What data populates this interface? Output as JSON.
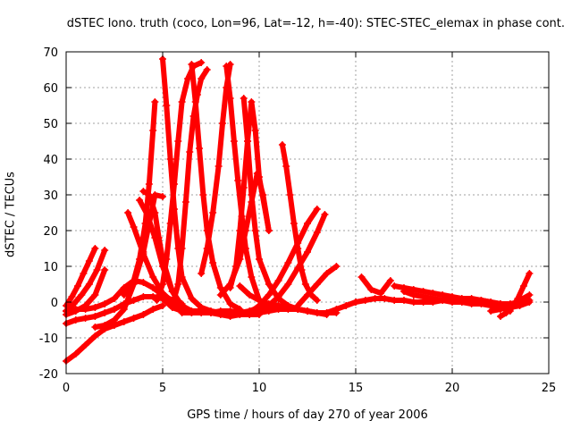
{
  "chart_data": {
    "type": "scatter",
    "title": "dSTEC Iono. truth (coco, Lon=96, Lat=-12, h=-40): STEC-STEC_elemax in phase cont.",
    "xlabel": "GPS time / hours of day 270 of year 2006",
    "ylabel": "dSTEC  / TECUs",
    "xlim": [
      0,
      25
    ],
    "ylim": [
      -20,
      70
    ],
    "xticks": [
      "0",
      "5",
      "10",
      "15",
      "20",
      "25"
    ],
    "yticks": [
      "-20",
      "-10",
      "0",
      "10",
      "20",
      "30",
      "40",
      "50",
      "60",
      "70"
    ],
    "grid": true,
    "marker": "+",
    "color": "#ff0000",
    "series": [
      {
        "x": [
          0.0,
          0.5,
          1.0,
          1.5,
          2.0,
          2.5,
          3.0,
          3.5,
          4.0,
          4.5,
          5.0
        ],
        "y": [
          -16.5,
          -14.5,
          -12.0,
          -9.5,
          -7.5,
          -6.5,
          -5.5,
          -4.5,
          -3.5,
          -2.0,
          -1.0
        ]
      },
      {
        "x": [
          0.0,
          0.5,
          1.0,
          1.5,
          2.0,
          2.5,
          3.0,
          3.5,
          4.0,
          4.5,
          5.0
        ],
        "y": [
          -6.0,
          -5.0,
          -4.5,
          -4.0,
          -3.0,
          -2.0,
          -0.5,
          0.5,
          1.5,
          1.5,
          1.0
        ]
      },
      {
        "x": [
          0.0,
          0.3,
          0.6,
          0.9,
          1.2,
          1.5
        ],
        "y": [
          -1.0,
          1.5,
          4.5,
          8.0,
          11.5,
          15.0
        ]
      },
      {
        "x": [
          0.0,
          0.4,
          0.8,
          1.2,
          1.6,
          2.0
        ],
        "y": [
          -2.5,
          -0.5,
          2.0,
          5.0,
          9.0,
          14.5
        ]
      },
      {
        "x": [
          0.0,
          0.5,
          1.0,
          1.5,
          2.0
        ],
        "y": [
          -3.5,
          -2.5,
          -1.0,
          2.0,
          9.0
        ]
      },
      {
        "x": [
          0.0,
          0.5,
          1.0,
          1.5,
          2.0,
          2.5,
          3.0,
          3.5,
          4.0,
          4.5,
          5.0,
          5.5,
          6.0
        ],
        "y": [
          -2.5,
          -2.0,
          -2.0,
          -1.5,
          -0.5,
          1.0,
          4.0,
          6.0,
          5.5,
          4.0,
          2.0,
          0.5,
          -0.5
        ]
      },
      {
        "x": [
          1.5,
          2.0,
          2.5,
          3.0,
          3.5,
          4.0,
          4.3,
          4.6,
          5.0
        ],
        "y": [
          -7.0,
          -6.5,
          -5.0,
          -2.0,
          5.0,
          14.0,
          22.0,
          30.0,
          29.5
        ]
      },
      {
        "x": [
          3.2,
          3.5,
          4.0,
          4.5,
          5.0,
          5.5,
          6.0
        ],
        "y": [
          25.0,
          21.0,
          13.5,
          7.0,
          2.5,
          0.0,
          -1.0
        ]
      },
      {
        "x": [
          3.8,
          4.2,
          4.6,
          5.0,
          5.5,
          6.0,
          6.5,
          7.0
        ],
        "y": [
          28.5,
          24.5,
          18.0,
          10.0,
          3.0,
          -1.5,
          -2.5,
          -2.5
        ]
      },
      {
        "x": [
          4.0,
          4.3,
          4.6,
          4.8,
          5.0,
          5.5,
          6.0,
          6.5
        ],
        "y": [
          31.0,
          30.0,
          25.0,
          18.0,
          12.0,
          3.0,
          -1.0,
          -2.5
        ]
      },
      {
        "x": [
          3.0,
          3.5,
          3.8,
          4.1,
          4.3,
          4.5,
          4.6
        ],
        "y": [
          2.0,
          6.0,
          12.0,
          22.0,
          33.0,
          48.0,
          56.0
        ]
      },
      {
        "x": [
          4.7,
          5.0,
          5.2,
          5.4,
          5.6,
          5.8,
          6.0,
          6.3,
          6.6,
          7.0
        ],
        "y": [
          0.5,
          5.0,
          12.0,
          22.0,
          33.0,
          45.0,
          56.0,
          62.5,
          66.0,
          67.0
        ]
      },
      {
        "x": [
          5.0,
          5.2,
          5.4,
          5.6,
          5.8,
          6.0,
          6.5,
          7.0,
          7.5,
          8.0
        ],
        "y": [
          68.0,
          55.0,
          40.0,
          26.0,
          15.0,
          7.0,
          1.0,
          -1.5,
          -2.5,
          -3.0
        ]
      },
      {
        "x": [
          5.5,
          5.8,
          6.0,
          6.2,
          6.4,
          6.6,
          6.8,
          7.0,
          7.3
        ],
        "y": [
          -1.0,
          5.0,
          15.0,
          28.0,
          42.0,
          52.0,
          58.0,
          62.5,
          65.0
        ]
      },
      {
        "x": [
          6.5,
          6.7,
          6.9,
          7.1,
          7.3,
          7.6,
          8.0,
          8.5,
          9.0
        ],
        "y": [
          66.5,
          56.0,
          43.0,
          30.0,
          20.0,
          11.0,
          4.0,
          -0.5,
          -2.0
        ]
      },
      {
        "x": [
          6.0,
          6.5,
          7.0,
          7.5,
          8.0,
          8.5,
          9.0,
          9.5,
          10.0
        ],
        "y": [
          -3.0,
          -3.0,
          -3.0,
          -3.0,
          -2.5,
          -2.5,
          -3.0,
          -3.5,
          -3.5
        ]
      },
      {
        "x": [
          5.0,
          5.5,
          6.0,
          6.5,
          7.0,
          7.5,
          8.0,
          8.5,
          9.0,
          9.5,
          10.0
        ],
        "y": [
          1.0,
          -1.5,
          -2.5,
          -3.0,
          -3.0,
          -3.0,
          -3.5,
          -4.0,
          -3.5,
          -3.5,
          -3.0
        ]
      },
      {
        "x": [
          7.0,
          7.3,
          7.6,
          7.9,
          8.1,
          8.3,
          8.5
        ],
        "y": [
          8.0,
          15.0,
          25.0,
          38.0,
          50.0,
          60.0,
          66.5
        ]
      },
      {
        "x": [
          8.3,
          8.5,
          8.7,
          8.9,
          9.1,
          9.3,
          9.6,
          10.0
        ],
        "y": [
          66.0,
          57.0,
          45.0,
          34.0,
          24.0,
          15.0,
          7.0,
          0.5
        ]
      },
      {
        "x": [
          8.5,
          8.8,
          9.0,
          9.2,
          9.4,
          9.6,
          9.8,
          10.0,
          10.5
        ],
        "y": [
          4.0,
          10.0,
          20.0,
          32.0,
          45.0,
          56.0,
          48.0,
          35.0,
          20.0
        ]
      },
      {
        "x": [
          9.2,
          9.4,
          9.6,
          9.8,
          10.0,
          10.5,
          11.0,
          11.5,
          12.0
        ],
        "y": [
          57.0,
          45.0,
          30.0,
          20.0,
          12.0,
          5.0,
          1.0,
          -1.0,
          -2.0
        ]
      },
      {
        "x": [
          8.0,
          8.5,
          9.0,
          9.3,
          9.6,
          9.9,
          10.2,
          10.5
        ],
        "y": [
          2.0,
          5.0,
          12.0,
          20.0,
          28.0,
          36.0,
          30.0,
          20.0
        ]
      },
      {
        "x": [
          9.0,
          9.5,
          10.0,
          10.5,
          11.0,
          11.5,
          12.0,
          12.5,
          13.0,
          13.5,
          14.0
        ],
        "y": [
          -3.0,
          -2.5,
          -1.5,
          -1.0,
          -1.0,
          -1.5,
          -2.0,
          -2.5,
          -3.0,
          -3.0,
          -3.0
        ]
      },
      {
        "x": [
          10.0,
          10.5,
          11.0,
          11.5,
          12.0,
          12.5,
          13.0,
          13.5,
          14.0,
          14.5,
          15.0
        ],
        "y": [
          -3.0,
          -2.5,
          -2.0,
          -2.0,
          -2.0,
          -2.5,
          -3.0,
          -3.0,
          -2.0,
          -1.0,
          0.0
        ]
      },
      {
        "x": [
          11.2,
          11.4,
          11.6,
          11.8,
          12.0,
          12.2,
          12.4,
          12.7,
          13.0
        ],
        "y": [
          44.0,
          38.0,
          30.0,
          22.0,
          15.0,
          9.0,
          5.0,
          2.0,
          0.5
        ]
      },
      {
        "x": [
          9.5,
          10.0,
          10.5,
          11.0,
          11.5,
          12.0,
          12.5,
          13.0
        ],
        "y": [
          -3.0,
          -1.0,
          2.0,
          6.0,
          11.0,
          16.5,
          22.0,
          26.0
        ]
      },
      {
        "x": [
          10.0,
          10.5,
          11.0,
          11.5,
          12.0,
          12.5,
          13.0,
          13.4
        ],
        "y": [
          -2.0,
          -1.0,
          1.5,
          5.0,
          9.5,
          14.0,
          19.5,
          24.5
        ]
      },
      {
        "x": [
          12.0,
          12.5,
          13.0,
          13.5,
          14.0
        ],
        "y": [
          -1.0,
          2.0,
          5.0,
          8.0,
          10.0
        ]
      },
      {
        "x": [
          9.0,
          9.5,
          10.0,
          10.5,
          11.0,
          11.5,
          12.0,
          12.5,
          13.0,
          13.5
        ],
        "y": [
          4.5,
          2.0,
          0.5,
          -0.5,
          -1.0,
          -1.5,
          -2.0,
          -2.5,
          -3.0,
          -3.5
        ]
      },
      {
        "x": [
          15.0,
          15.5,
          16.0,
          16.5,
          17.0,
          17.5,
          18.0,
          18.5,
          19.0,
          19.5,
          20.0,
          20.5,
          21.0,
          21.5,
          22.0,
          22.5,
          23.0,
          23.5,
          24.0
        ],
        "y": [
          0.0,
          0.5,
          1.0,
          1.0,
          0.5,
          0.5,
          0.0,
          0.0,
          0.0,
          0.5,
          0.5,
          0.0,
          0.0,
          0.5,
          0.0,
          -0.5,
          -0.5,
          0.0,
          0.5
        ]
      },
      {
        "x": [
          15.3,
          15.8,
          16.3,
          16.8
        ],
        "y": [
          7.0,
          3.5,
          2.5,
          6.0
        ]
      },
      {
        "x": [
          17.0,
          17.5,
          18.0,
          18.5,
          19.0,
          19.5,
          20.0,
          20.5,
          21.0,
          21.5,
          22.0
        ],
        "y": [
          4.5,
          4.0,
          3.5,
          3.0,
          2.5,
          2.0,
          1.5,
          1.0,
          1.0,
          0.5,
          0.0
        ]
      },
      {
        "x": [
          17.5,
          18.0,
          18.5,
          19.0,
          19.5,
          20.0,
          20.5,
          21.0,
          21.5,
          22.0,
          22.5,
          23.0
        ],
        "y": [
          3.0,
          2.0,
          1.5,
          1.0,
          0.5,
          0.0,
          0.0,
          -0.5,
          -0.5,
          -1.0,
          -1.5,
          -2.5
        ]
      },
      {
        "x": [
          22.5,
          22.8,
          23.1,
          23.4,
          23.7,
          24.0
        ],
        "y": [
          -4.0,
          -3.0,
          -1.5,
          1.0,
          4.5,
          8.0
        ]
      },
      {
        "x": [
          22.0,
          22.5,
          23.0,
          23.5,
          24.0
        ],
        "y": [
          -2.5,
          -2.0,
          -1.0,
          0.5,
          2.0
        ]
      },
      {
        "x": [
          21.5,
          22.0,
          22.5,
          23.0,
          23.5,
          24.0
        ],
        "y": [
          0.5,
          0.0,
          -0.5,
          -1.5,
          -1.0,
          0.0
        ]
      }
    ]
  }
}
